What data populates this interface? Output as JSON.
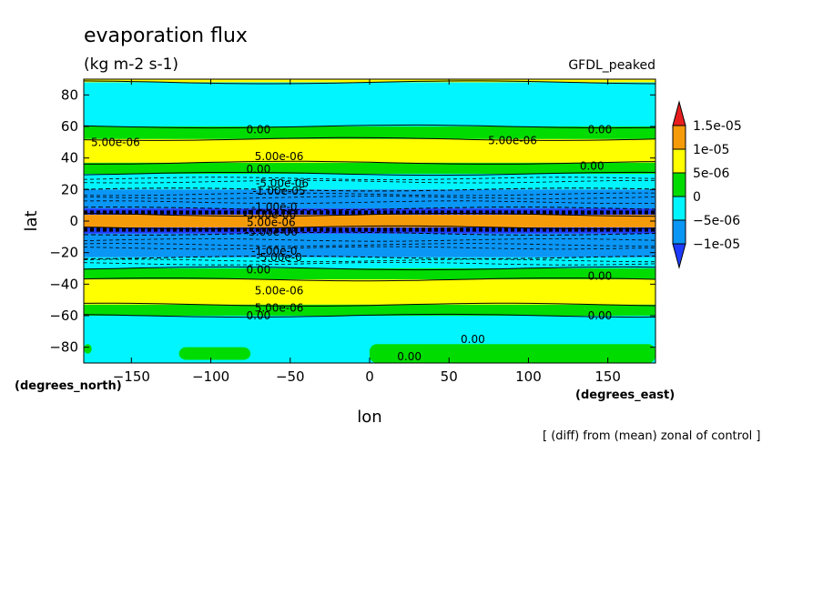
{
  "chart_data": {
    "type": "heatmap",
    "title": "evaporation flux",
    "subtitle": "(kg m-2 s-1)",
    "model_label": "GFDL_peaked",
    "xlabel": "lon",
    "ylabel": "lat",
    "x_units": "(degrees_east)",
    "y_units": "(degrees_north)",
    "footnote": "[ (diff) from (mean) zonal of control ]",
    "xlim": [
      -180,
      180
    ],
    "ylim": [
      -90,
      90
    ],
    "x_ticks": [
      -150,
      -100,
      -50,
      0,
      50,
      100,
      150
    ],
    "y_ticks": [
      -80,
      -60,
      -40,
      -20,
      0,
      20,
      40,
      60,
      80
    ],
    "x_tick_labels": [
      "−150",
      "−100",
      "−50",
      "0",
      "50",
      "100",
      "150"
    ],
    "y_tick_labels": [
      "−80",
      "−60",
      "−40",
      "−20",
      "0",
      "20",
      "40",
      "60",
      "80"
    ],
    "colorbar": {
      "labels": [
        "1.5e-05",
        "1e-05",
        "5e-06",
        "0",
        "−5e-06",
        "−1e-05"
      ],
      "colors": [
        "#e81e1e",
        "#f59b0a",
        "#ffff00",
        "#00dc00",
        "#00f5ff",
        "#0a96f5",
        "#1e3cff"
      ]
    },
    "bands": [
      {
        "lat_range": [
          88,
          90
        ],
        "category": 2
      },
      {
        "lat_range": [
          60,
          88
        ],
        "category": 4
      },
      {
        "lat_range": [
          52,
          60
        ],
        "category": 3
      },
      {
        "lat_range": [
          37,
          52
        ],
        "category": 2
      },
      {
        "lat_range": [
          30,
          37
        ],
        "category": 3
      },
      {
        "lat_range": [
          20,
          30
        ],
        "category": 4
      },
      {
        "lat_range": [
          8,
          20
        ],
        "category": 5
      },
      {
        "lat_range": [
          4,
          8
        ],
        "category": 6
      },
      {
        "lat_range": [
          -4,
          4
        ],
        "category": 1
      },
      {
        "lat_range": [
          -8,
          -4
        ],
        "category": 6
      },
      {
        "lat_range": [
          -23,
          -8
        ],
        "category": 5
      },
      {
        "lat_range": [
          -30,
          -23
        ],
        "category": 4
      },
      {
        "lat_range": [
          -37,
          -30
        ],
        "category": 3
      },
      {
        "lat_range": [
          -53,
          -37
        ],
        "category": 2
      },
      {
        "lat_range": [
          -60,
          -53
        ],
        "category": 3
      },
      {
        "lat_range": [
          -90,
          -60
        ],
        "category": 4
      }
    ],
    "patches": [
      {
        "category": 3,
        "lon_range": [
          -120,
          -75
        ],
        "lat_range": [
          -88,
          -80
        ]
      },
      {
        "category": 3,
        "lon_range": [
          -180,
          -175
        ],
        "lat_range": [
          -84,
          -78
        ]
      },
      {
        "category": 3,
        "lon_range": [
          0,
          180
        ],
        "lat_range": [
          -90,
          -78
        ]
      }
    ],
    "contour_labels": [
      {
        "text": "0.00",
        "lon": -70,
        "lat": 58
      },
      {
        "text": "0.00",
        "lon": 145,
        "lat": 58
      },
      {
        "text": "5.00e-06",
        "lon": -160,
        "lat": 50
      },
      {
        "text": "5.00e-06",
        "lon": 90,
        "lat": 51
      },
      {
        "text": "5.00e-06",
        "lon": -57,
        "lat": 41
      },
      {
        "text": "0.00",
        "lon": -70,
        "lat": 33
      },
      {
        "text": "0.00",
        "lon": 140,
        "lat": 35
      },
      {
        "text": "-5.00e-06",
        "lon": -55,
        "lat": 24
      },
      {
        "text": "-1.00e-05",
        "lon": -57,
        "lat": 19
      },
      {
        "text": "-1.00e-0",
        "lon": -60,
        "lat": 9
      },
      {
        "text": "-5.00e-06",
        "lon": -63,
        "lat": 4
      },
      {
        "text": "5.00e-06",
        "lon": -62,
        "lat": -1
      },
      {
        "text": "-5.00e-06",
        "lon": -62,
        "lat": -7
      },
      {
        "text": "-1.00e-0",
        "lon": -60,
        "lat": -19
      },
      {
        "text": "-5.00e-0",
        "lon": -57,
        "lat": -23
      },
      {
        "text": "0.00",
        "lon": -70,
        "lat": -31
      },
      {
        "text": "0.00",
        "lon": 145,
        "lat": -35
      },
      {
        "text": "5.00e-06",
        "lon": -57,
        "lat": -44
      },
      {
        "text": "5.00e-06",
        "lon": -57,
        "lat": -55
      },
      {
        "text": "0.00",
        "lon": -70,
        "lat": -60
      },
      {
        "text": "0.00",
        "lon": 145,
        "lat": -60
      },
      {
        "text": "0.00",
        "lon": 65,
        "lat": -75
      },
      {
        "text": "0.00",
        "lon": 25,
        "lat": -86
      }
    ],
    "grid": false,
    "legend": "right"
  }
}
